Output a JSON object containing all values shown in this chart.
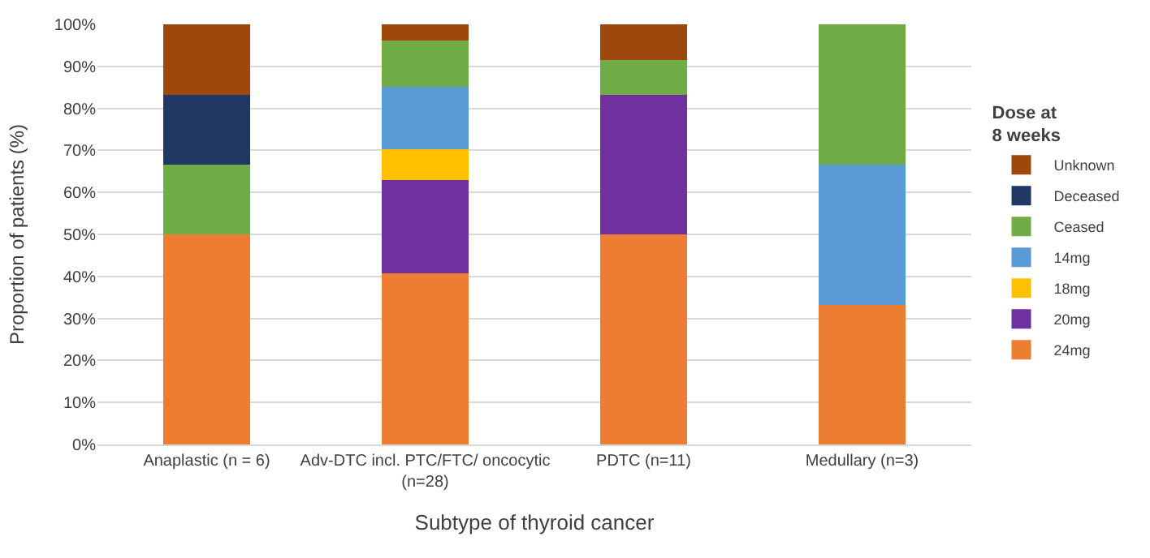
{
  "chart_data": {
    "type": "bar",
    "stacked": true,
    "xlabel": "Subtype of thyroid cancer",
    "ylabel": "Proportion of patients (%)",
    "legend_title": "Dose at\n8 weeks",
    "legend": "right",
    "grid": "y",
    "categories": [
      "Anaplastic (n = 6)",
      "Adv-DTC incl. PTC/FTC/ oncocytic\n(n=28)",
      "PDTC (n=11)",
      "Medullary (n=3)"
    ],
    "ylim": [
      0,
      100
    ],
    "yticks": [
      {
        "value": 0,
        "label": "0%"
      },
      {
        "value": 10,
        "label": "10%"
      },
      {
        "value": 20,
        "label": "20%"
      },
      {
        "value": 30,
        "label": "30%"
      },
      {
        "value": 40,
        "label": "40%"
      },
      {
        "value": 50,
        "label": "50%"
      },
      {
        "value": 60,
        "label": "60%"
      },
      {
        "value": 70,
        "label": "70%"
      },
      {
        "value": 80,
        "label": "80%"
      },
      {
        "value": 90,
        "label": "90%"
      },
      {
        "value": 100,
        "label": "100%"
      }
    ],
    "series": [
      {
        "name": "24mg",
        "color": "#ed7d31",
        "values": [
          50,
          40.7,
          50,
          33.3
        ]
      },
      {
        "name": "20mg",
        "color": "#7030a0",
        "values": [
          null,
          22.2,
          33.3,
          null
        ]
      },
      {
        "name": "18mg",
        "color": "#ffc000",
        "values": [
          null,
          7.4,
          null,
          null
        ]
      },
      {
        "name": "14mg",
        "color": "#5b9bd5",
        "values": [
          null,
          14.8,
          null,
          33.3
        ]
      },
      {
        "name": "Ceased",
        "color": "#70ad47",
        "values": [
          16.7,
          11.1,
          8.3,
          33.4
        ]
      },
      {
        "name": "Deceased",
        "color": "#203864",
        "values": [
          16.6,
          null,
          null,
          null
        ]
      },
      {
        "name": "Unknown",
        "color": "#9e480e",
        "values": [
          16.7,
          3.8,
          8.4,
          null
        ]
      }
    ]
  }
}
